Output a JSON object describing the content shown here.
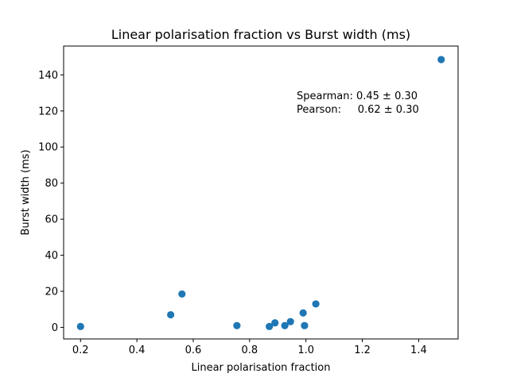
{
  "chart_data": {
    "type": "scatter",
    "title": "Linear polarisation fraction vs Burst width (ms)",
    "xlabel": "Linear polarisation fraction",
    "ylabel": "Burst width (ms)",
    "xlim": [
      0.14,
      1.54
    ],
    "ylim": [
      -6.4,
      156.0
    ],
    "xticks": [
      0.2,
      0.4,
      0.6,
      0.8,
      1.0,
      1.2,
      1.4
    ],
    "xtick_labels": [
      "0.2",
      "0.4",
      "0.6",
      "0.8",
      "1.0",
      "1.2",
      "1.4"
    ],
    "yticks": [
      0,
      20,
      40,
      60,
      80,
      100,
      120,
      140
    ],
    "ytick_labels": [
      "0",
      "20",
      "40",
      "60",
      "80",
      "100",
      "120",
      "140"
    ],
    "grid": false,
    "marker_color": "#1f77b4",
    "series": [
      {
        "points": [
          {
            "x": 0.2,
            "y": 0.5
          },
          {
            "x": 0.52,
            "y": 7.0
          },
          {
            "x": 0.56,
            "y": 18.5
          },
          {
            "x": 0.755,
            "y": 1.0
          },
          {
            "x": 0.87,
            "y": 0.5
          },
          {
            "x": 0.89,
            "y": 2.5
          },
          {
            "x": 0.925,
            "y": 1.0
          },
          {
            "x": 0.945,
            "y": 3.2
          },
          {
            "x": 0.99,
            "y": 8.0
          },
          {
            "x": 0.995,
            "y": 1.0
          },
          {
            "x": 1.035,
            "y": 13.0
          },
          {
            "x": 1.48,
            "y": 148.5
          }
        ]
      }
    ],
    "annotations": [
      "Spearman: 0.45 ± 0.30",
      "Pearson:     0.62 ± 0.30"
    ]
  }
}
